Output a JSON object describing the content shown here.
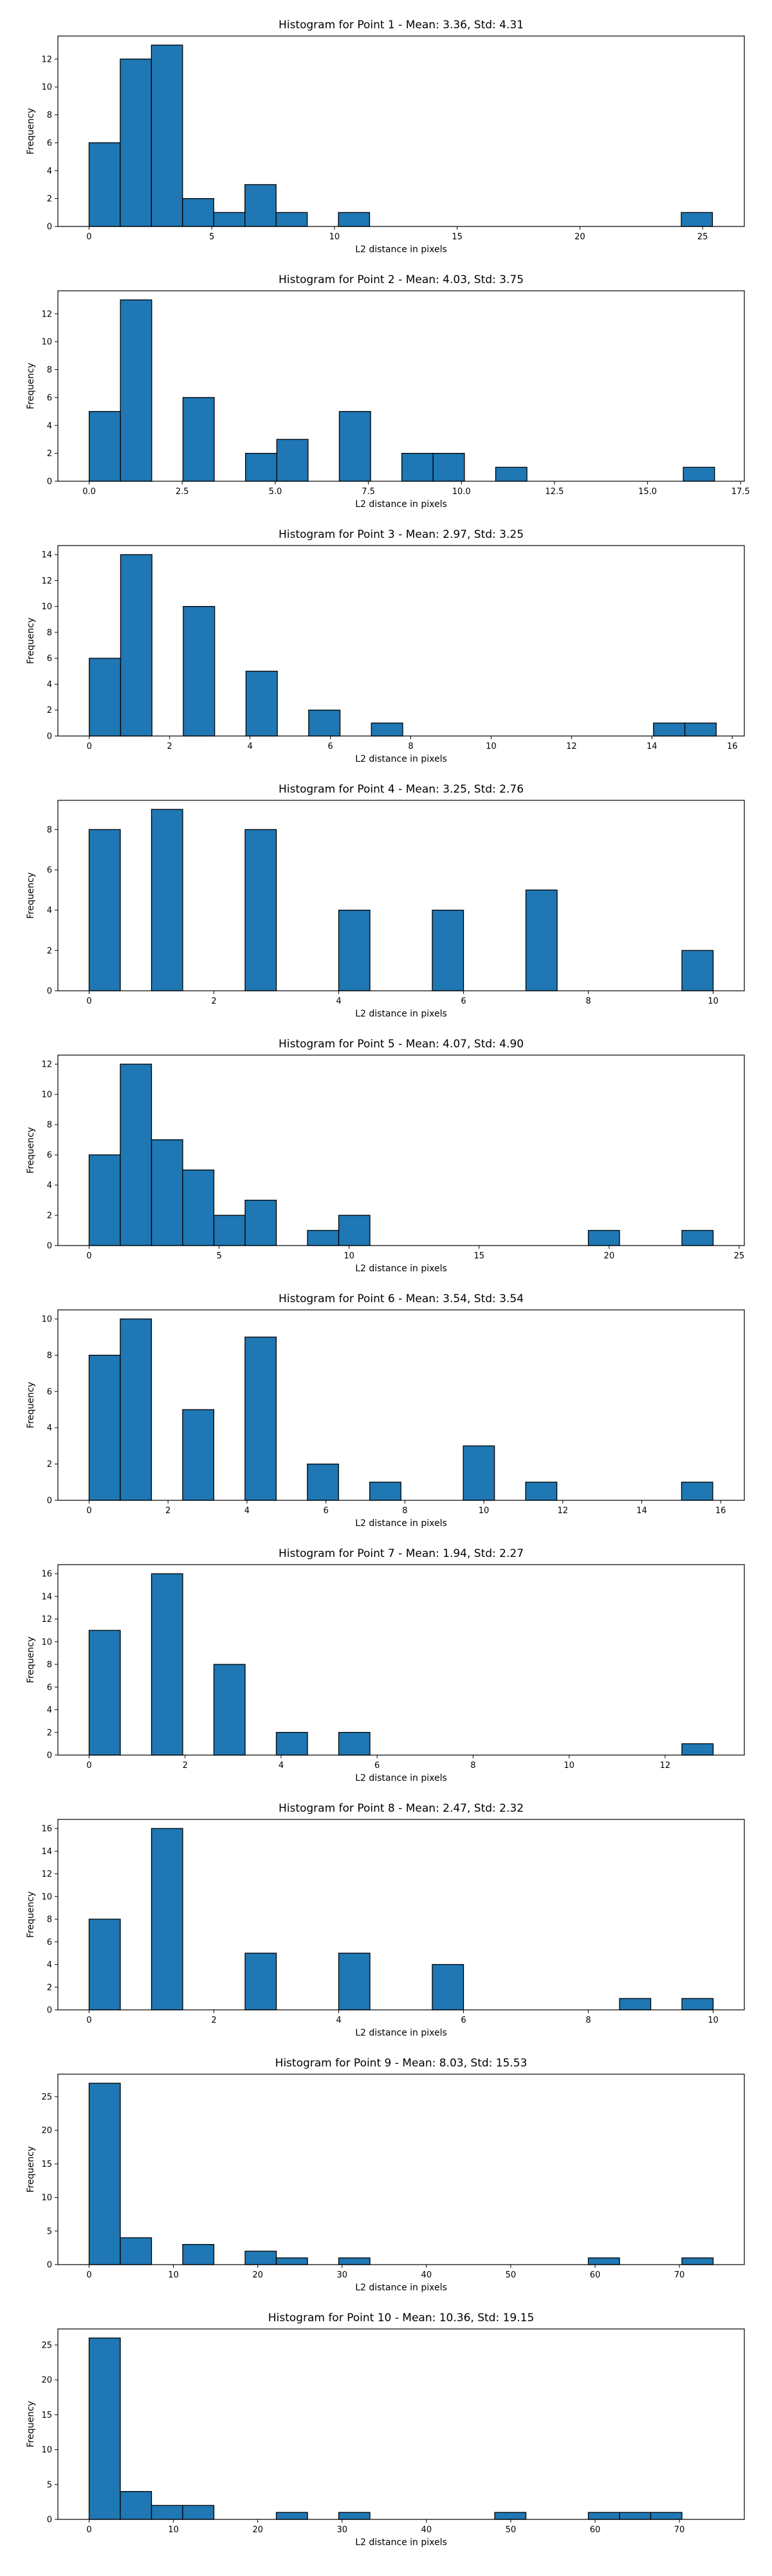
{
  "chart_data": [
    {
      "type": "bar",
      "title": "Histogram for Point 1 - Mean: 3.36, Std: 4.31",
      "xlabel": "L2 distance in pixels",
      "ylabel": "Frequency",
      "xlim": [
        -1.27,
        26.7
      ],
      "ylim": [
        0,
        13.65
      ],
      "xticks": [
        0,
        5,
        10,
        15,
        20,
        25
      ],
      "xtick_labels": [
        "0",
        "5",
        "10",
        "15",
        "20",
        "25"
      ],
      "yticks": [
        0,
        2,
        4,
        6,
        8,
        10,
        12
      ],
      "bin_edges": [
        0,
        1.27,
        2.54,
        3.81,
        5.08,
        6.35,
        7.62,
        8.89,
        10.16,
        11.43,
        12.7,
        13.97,
        15.24,
        16.51,
        17.78,
        19.05,
        20.32,
        21.59,
        22.86,
        24.13,
        25.4
      ],
      "counts": [
        6,
        12,
        13,
        2,
        1,
        3,
        1,
        0,
        1,
        0,
        0,
        0,
        0,
        0,
        0,
        0,
        0,
        0,
        0,
        1
      ]
    },
    {
      "type": "bar",
      "title": "Histogram for Point 2 - Mean: 4.03, Std: 3.75",
      "xlabel": "L2 distance in pixels",
      "ylabel": "Frequency",
      "xlim": [
        -0.84,
        17.6
      ],
      "ylim": [
        0,
        13.65
      ],
      "xticks": [
        0,
        2.5,
        5,
        7.5,
        10,
        12.5,
        15,
        17.5
      ],
      "xtick_labels": [
        "0.0",
        "2.5",
        "5.0",
        "7.5",
        "10.0",
        "12.5",
        "15.0",
        "17.5"
      ],
      "yticks": [
        0,
        2,
        4,
        6,
        8,
        10,
        12
      ],
      "bin_edges": [
        0,
        0.84,
        1.68,
        2.52,
        3.36,
        4.2,
        5.04,
        5.88,
        6.72,
        7.56,
        8.4,
        9.24,
        10.08,
        10.92,
        11.76,
        12.6,
        13.44,
        14.28,
        15.12,
        15.96,
        16.8
      ],
      "counts": [
        5,
        13,
        0,
        6,
        0,
        2,
        3,
        0,
        5,
        0,
        2,
        2,
        0,
        1,
        0,
        0,
        0,
        0,
        0,
        1
      ]
    },
    {
      "type": "bar",
      "title": "Histogram for Point 3 - Mean: 2.97, Std: 3.25",
      "xlabel": "L2 distance in pixels",
      "ylabel": "Frequency",
      "xlim": [
        -0.78,
        16.3
      ],
      "ylim": [
        0,
        14.7
      ],
      "xticks": [
        0,
        2,
        4,
        6,
        8,
        10,
        12,
        14,
        16
      ],
      "xtick_labels": [
        "0",
        "2",
        "4",
        "6",
        "8",
        "10",
        "12",
        "14",
        "16"
      ],
      "yticks": [
        0,
        2,
        4,
        6,
        8,
        10,
        12,
        14
      ],
      "bin_edges": [
        0,
        0.78,
        1.56,
        2.34,
        3.12,
        3.9,
        4.68,
        5.46,
        6.24,
        7.02,
        7.8,
        8.58,
        9.36,
        10.14,
        10.92,
        11.7,
        12.48,
        13.26,
        14.04,
        14.82,
        15.6
      ],
      "counts": [
        6,
        14,
        0,
        10,
        0,
        5,
        0,
        2,
        0,
        1,
        0,
        0,
        0,
        0,
        0,
        0,
        0,
        0,
        1,
        1
      ]
    },
    {
      "type": "bar",
      "title": "Histogram for Point 4 - Mean: 3.25, Std: 2.76",
      "xlabel": "L2 distance in pixels",
      "ylabel": "Frequency",
      "xlim": [
        -0.5,
        10.5
      ],
      "ylim": [
        0,
        9.45
      ],
      "xticks": [
        0,
        2,
        4,
        6,
        8,
        10
      ],
      "xtick_labels": [
        "0",
        "2",
        "4",
        "6",
        "8",
        "10"
      ],
      "yticks": [
        0,
        2,
        4,
        6,
        8
      ],
      "bin_edges": [
        0,
        0.5,
        1,
        1.5,
        2,
        2.5,
        3,
        3.5,
        4,
        4.5,
        5,
        5.5,
        6,
        6.5,
        7,
        7.5,
        8,
        8.5,
        9,
        9.5,
        10
      ],
      "counts": [
        8,
        0,
        9,
        0,
        0,
        8,
        0,
        0,
        4,
        0,
        0,
        4,
        0,
        0,
        5,
        0,
        0,
        0,
        0,
        2
      ]
    },
    {
      "type": "bar",
      "title": "Histogram for Point 5 - Mean: 4.07, Std: 4.90",
      "xlabel": "L2 distance in pixels",
      "ylabel": "Frequency",
      "xlim": [
        -1.2,
        25.2
      ],
      "ylim": [
        0,
        12.6
      ],
      "xticks": [
        0,
        5,
        10,
        15,
        20,
        25
      ],
      "xtick_labels": [
        "0",
        "5",
        "10",
        "15",
        "20",
        "25"
      ],
      "yticks": [
        0,
        2,
        4,
        6,
        8,
        10,
        12
      ],
      "bin_edges": [
        0,
        1.2,
        2.4,
        3.6,
        4.8,
        6,
        7.2,
        8.4,
        9.6,
        10.8,
        12,
        13.2,
        14.4,
        15.6,
        16.8,
        18,
        19.2,
        20.4,
        21.6,
        22.8,
        24
      ],
      "counts": [
        6,
        12,
        7,
        5,
        2,
        3,
        0,
        1,
        2,
        0,
        0,
        0,
        0,
        0,
        0,
        0,
        1,
        0,
        0,
        1
      ]
    },
    {
      "type": "bar",
      "title": "Histogram for Point 6 - Mean: 3.54, Std: 3.54",
      "xlabel": "L2 distance in pixels",
      "ylabel": "Frequency",
      "xlim": [
        -0.79,
        16.6
      ],
      "ylim": [
        0,
        10.5
      ],
      "xticks": [
        0,
        2,
        4,
        6,
        8,
        10,
        12,
        14,
        16
      ],
      "xtick_labels": [
        "0",
        "2",
        "4",
        "6",
        "8",
        "10",
        "12",
        "14",
        "16"
      ],
      "yticks": [
        0,
        2,
        4,
        6,
        8,
        10
      ],
      "bin_edges": [
        0,
        0.79,
        1.58,
        2.37,
        3.16,
        3.95,
        4.74,
        5.53,
        6.32,
        7.11,
        7.9,
        8.69,
        9.48,
        10.27,
        11.06,
        11.85,
        12.64,
        13.43,
        14.22,
        15.01,
        15.8
      ],
      "counts": [
        8,
        10,
        0,
        5,
        0,
        9,
        0,
        2,
        0,
        1,
        0,
        0,
        3,
        0,
        1,
        0,
        0,
        0,
        0,
        1
      ]
    },
    {
      "type": "bar",
      "title": "Histogram for Point 7 - Mean: 1.94, Std: 2.27",
      "xlabel": "L2 distance in pixels",
      "ylabel": "Frequency",
      "xlim": [
        -0.65,
        13.65
      ],
      "ylim": [
        0,
        16.8
      ],
      "xticks": [
        0,
        2,
        4,
        6,
        8,
        10,
        12
      ],
      "xtick_labels": [
        "0",
        "2",
        "4",
        "6",
        "8",
        "10",
        "12"
      ],
      "yticks": [
        0,
        2,
        4,
        6,
        8,
        10,
        12,
        14,
        16
      ],
      "bin_edges": [
        0,
        0.65,
        1.3,
        1.95,
        2.6,
        3.25,
        3.9,
        4.55,
        5.2,
        5.85,
        6.5,
        7.15,
        7.8,
        8.45,
        9.1,
        9.75,
        10.4,
        11.05,
        11.7,
        12.35,
        13
      ],
      "counts": [
        11,
        0,
        16,
        0,
        8,
        0,
        2,
        0,
        2,
        0,
        0,
        0,
        0,
        0,
        0,
        0,
        0,
        0,
        0,
        1
      ]
    },
    {
      "type": "bar",
      "title": "Histogram for Point 8 - Mean: 2.47, Std: 2.32",
      "xlabel": "L2 distance in pixels",
      "ylabel": "Frequency",
      "xlim": [
        -0.5,
        10.5
      ],
      "ylim": [
        0,
        16.8
      ],
      "xticks": [
        0,
        2,
        4,
        6,
        8,
        10
      ],
      "xtick_labels": [
        "0",
        "2",
        "4",
        "6",
        "8",
        "10"
      ],
      "yticks": [
        0,
        2,
        4,
        6,
        8,
        10,
        12,
        14,
        16
      ],
      "bin_edges": [
        0,
        0.5,
        1,
        1.5,
        2,
        2.5,
        3,
        3.5,
        4,
        4.5,
        5,
        5.5,
        6,
        6.5,
        7,
        7.5,
        8,
        8.5,
        9,
        9.5,
        10
      ],
      "counts": [
        8,
        0,
        16,
        0,
        0,
        5,
        0,
        0,
        5,
        0,
        0,
        4,
        0,
        0,
        0,
        0,
        0,
        1,
        0,
        1
      ]
    },
    {
      "type": "bar",
      "title": "Histogram for Point 9 - Mean: 8.03, Std: 15.53",
      "xlabel": "L2 distance in pixels",
      "ylabel": "Frequency",
      "xlim": [
        -3.7,
        77.7
      ],
      "ylim": [
        0,
        28.35
      ],
      "xticks": [
        0,
        10,
        20,
        30,
        40,
        50,
        60,
        70
      ],
      "xtick_labels": [
        "0",
        "10",
        "20",
        "30",
        "40",
        "50",
        "60",
        "70"
      ],
      "yticks": [
        0,
        5,
        10,
        15,
        20,
        25
      ],
      "bin_edges": [
        0,
        3.7,
        7.4,
        11.1,
        14.8,
        18.5,
        22.2,
        25.9,
        29.6,
        33.3,
        37,
        40.7,
        44.4,
        48.1,
        51.8,
        55.5,
        59.2,
        62.9,
        66.6,
        70.3,
        74
      ],
      "counts": [
        27,
        4,
        0,
        3,
        0,
        2,
        1,
        0,
        1,
        0,
        0,
        0,
        0,
        0,
        0,
        0,
        1,
        0,
        0,
        1
      ]
    },
    {
      "type": "bar",
      "title": "Histogram for Point 10 - Mean: 10.36, Std: 19.15",
      "xlabel": "L2 distance in pixels",
      "ylabel": "Frequency",
      "xlim": [
        -3.7,
        77.7
      ],
      "ylim": [
        0,
        27.3
      ],
      "xticks": [
        0,
        10,
        20,
        30,
        40,
        50,
        60,
        70
      ],
      "xtick_labels": [
        "0",
        "10",
        "20",
        "30",
        "40",
        "50",
        "60",
        "70"
      ],
      "yticks": [
        0,
        5,
        10,
        15,
        20,
        25
      ],
      "bin_edges": [
        0,
        3.7,
        7.4,
        11.1,
        14.8,
        18.5,
        22.2,
        25.9,
        29.6,
        33.3,
        37,
        40.7,
        44.4,
        48.1,
        51.8,
        55.5,
        59.2,
        62.9,
        66.6,
        70.3,
        74
      ],
      "counts": [
        26,
        4,
        2,
        2,
        0,
        0,
        1,
        0,
        1,
        0,
        0,
        0,
        0,
        1,
        0,
        0,
        1,
        1,
        1,
        0
      ]
    }
  ]
}
